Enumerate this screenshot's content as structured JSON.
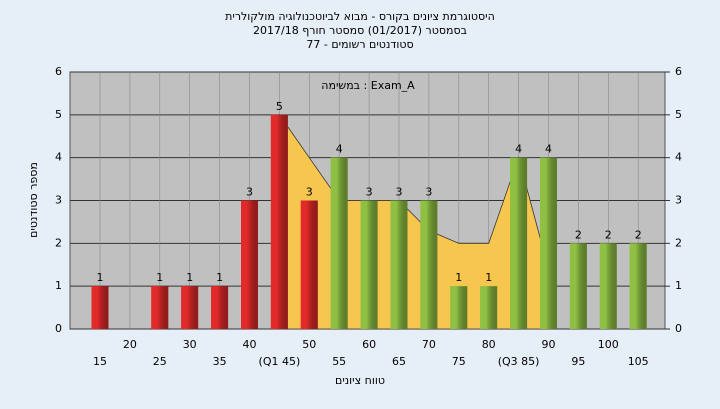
{
  "chart_data": {
    "type": "bar",
    "title": [
      "היסטוגרמת ציונים בקורס - מבוא לביוטכנולוגיה מולקולרית",
      "בסמסטר  (01/2017)  סמסטר חורף 2017/18",
      "סטודנטים רשומים - 77"
    ],
    "annotation": "במשימה : Exam_A",
    "xlabel": "טווח ציונים",
    "ylabel": "מספר סטודנטים",
    "categories": [
      "15",
      "20",
      "25",
      "30",
      "35",
      "40",
      "(Q1 45)",
      "50",
      "55",
      "60",
      "65",
      "70",
      "75",
      "80",
      "(Q3 85)",
      "90",
      "95",
      "100",
      "105"
    ],
    "values": [
      1,
      null,
      1,
      1,
      1,
      3,
      5,
      3,
      4,
      3,
      3,
      3,
      1,
      1,
      4,
      4,
      2,
      2,
      2
    ],
    "colors": [
      "#e22a2a",
      "#e22a2a",
      "#e22a2a",
      "#e22a2a",
      "#e22a2a",
      "#e22a2a",
      "#e22a2a",
      "#e22a2a",
      "#8fc043",
      "#8fc043",
      "#8fc043",
      "#8fc043",
      "#8fc043",
      "#8fc043",
      "#8fc043",
      "#8fc043",
      "#8fc043",
      "#8fc043",
      "#8fc043"
    ],
    "area_values": [
      null,
      null,
      null,
      null,
      null,
      null,
      5,
      4,
      3,
      3,
      3,
      2.3,
      2,
      2,
      4,
      1.4,
      null,
      null,
      null
    ],
    "area_color": "#f7c64f",
    "ylim": [
      0,
      6
    ],
    "yticks": [
      0,
      1,
      2,
      3,
      4,
      5,
      6
    ],
    "y2lim": [
      0,
      6
    ],
    "y2ticks": [
      0,
      1,
      2,
      3,
      4,
      5,
      6
    ],
    "grid": true,
    "plot_color": "#c0c0c0"
  }
}
